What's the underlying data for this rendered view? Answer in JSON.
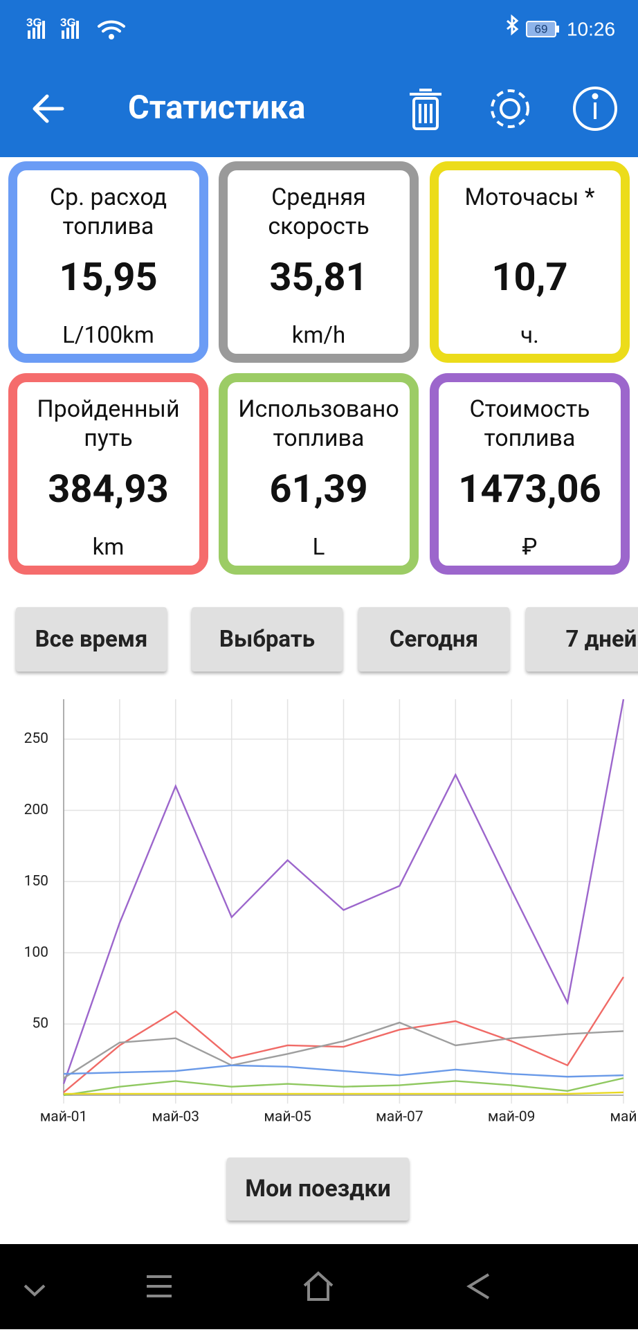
{
  "status_bar": {
    "signal_1": "3G",
    "signal_2": "3G",
    "battery": "69",
    "time": "10:26"
  },
  "app_bar": {
    "title": "Статистика"
  },
  "cards": [
    {
      "label": "Ср. расход топлива",
      "value": "15,95",
      "unit": "L/100km"
    },
    {
      "label": "Средняя скорость",
      "value": "35,81",
      "unit": "km/h"
    },
    {
      "label": "Моточасы *",
      "value": "10,7",
      "unit": "ч."
    },
    {
      "label": "Пройденный путь",
      "value": "384,93",
      "unit": "km"
    },
    {
      "label": "Использовано топлива",
      "value": "61,39",
      "unit": "L"
    },
    {
      "label": "Стоимость топлива",
      "value": "1473,06",
      "unit": "₽"
    }
  ],
  "period_buttons": [
    "Все время",
    "Выбрать",
    "Сегодня",
    "7 дней"
  ],
  "chart_data": {
    "type": "line",
    "categories": [
      "май-01",
      null,
      "май-03",
      null,
      "май-05",
      null,
      "май-07",
      null,
      "май-09",
      null,
      "май"
    ],
    "series": [
      {
        "color": "#9c66cc",
        "values": [
          8,
          121,
          217,
          125,
          165,
          130,
          147,
          225,
          144,
          65,
          278
        ]
      },
      {
        "color": "#f06a66",
        "values": [
          2,
          35,
          59,
          26,
          35,
          34,
          46,
          52,
          38,
          21,
          83
        ]
      },
      {
        "color": "#9e9e9e",
        "values": [
          12,
          37,
          40,
          21,
          29,
          38,
          51,
          35,
          40,
          43,
          45
        ]
      },
      {
        "color": "#6a9ae8",
        "values": [
          15,
          16,
          17,
          21,
          20,
          17,
          14,
          18,
          15,
          13,
          14
        ]
      },
      {
        "color": "#8fc860",
        "values": [
          0,
          6,
          10,
          6,
          8,
          6,
          7,
          10,
          7,
          3,
          12
        ]
      },
      {
        "color": "#e8d820",
        "values": [
          1,
          1,
          1,
          1,
          1,
          1,
          1,
          1,
          1,
          1,
          2
        ]
      }
    ],
    "ylim": [
      0,
      278
    ],
    "yticks": [
      50,
      100,
      150,
      200,
      250
    ],
    "grid": true
  },
  "footer_button": "Мои поездки"
}
